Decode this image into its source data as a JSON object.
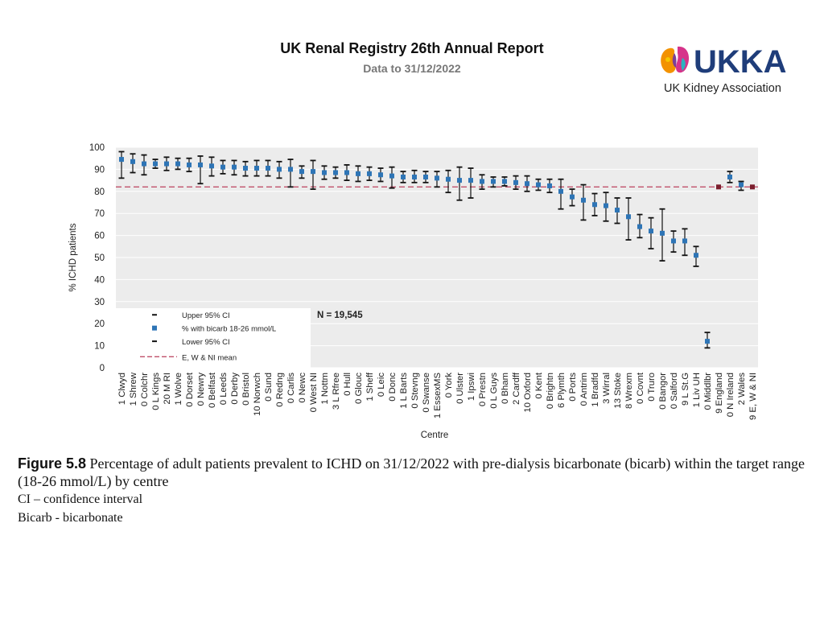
{
  "header": {
    "title": "UK Renal Registry 26th Annual Report",
    "subtitle": "Data to 31/12/2022"
  },
  "logo": {
    "wordmark": "UKKA",
    "tagline": "UK Kidney Association",
    "colors": {
      "blue": "#1f3d7a",
      "teal": "#2bb3c0",
      "orange": "#f39200",
      "magenta": "#d6338a",
      "purple": "#7b3f98",
      "yellow": "#f7c600"
    }
  },
  "caption": {
    "figure_label": "Figure 5.8",
    "text": " Percentage of adult patients prevalent to ICHD on 31/12/2022 with pre-dialysis bicarbonate (bicarb) within the target range (18-26 mmol/L) by centre",
    "note1": "CI – confidence interval",
    "note2": "Bicarb - bicarbonate"
  },
  "chart_data": {
    "type": "scatter",
    "title": "",
    "xlabel": "Centre",
    "ylabel": "% ICHD patients",
    "ylim": [
      0,
      100
    ],
    "yticks": [
      0,
      10,
      20,
      30,
      40,
      50,
      60,
      70,
      80,
      90,
      100
    ],
    "annotation": "N = 19,545",
    "mean_line": 82,
    "legend": [
      {
        "key": "upper",
        "label": "Upper 95% CI"
      },
      {
        "key": "point",
        "label": "% with bicarb 18-26 mmol/L"
      },
      {
        "key": "lower",
        "label": "Lower 95% CI"
      },
      {
        "key": "mean",
        "label": "E, W & NI mean"
      }
    ],
    "legend_position": "bottom-left",
    "colors": {
      "point": "#2e75b6",
      "aggregate": "#7b1f2e",
      "mean": "#c0506a",
      "ci": "#111111",
      "grid": "#ffffff",
      "plot_bg": "#ececec"
    },
    "categories": [
      "1 Clwyd",
      "1 Shrew",
      "0 Colchr",
      "0 L Kings",
      "20 M RI",
      "1 Wolve",
      "0 Dorset",
      "0 Newry",
      "0 Belfast",
      "0 Leeds",
      "0 Derby",
      "0 Bristol",
      "10 Norwch",
      "0 Sund",
      "0 Redng",
      "0 Carlis",
      "0 Newc",
      "0 West NI",
      "1 Nottm",
      "3 L Rfree",
      "0 Hull",
      "0 Glouc",
      "1 Sheff",
      "0 Leic",
      "0 Donc",
      "1 L Barts",
      "0 Stevng",
      "0 Swanse",
      "1 EssexMS",
      "0 York",
      "0 Ulster",
      "1 Ipswi",
      "0 Prestn",
      "0 L Guys",
      "0 Bham",
      "2 Cardff",
      "10 Oxford",
      "0 Kent",
      "0 Brightn",
      "6 Plymth",
      "0 Ports",
      "0 Antrim",
      "1 Bradfd",
      "3 Wirral",
      "13 Stoke",
      "8 Wrexm",
      "0 Covnt",
      "0 Truro",
      "0 Bangor",
      "0 Salford",
      "9 L St.G",
      "1 Liv UH",
      "0 Middlbr",
      "9 England",
      "0 N Ireland",
      "2 Wales",
      "9 E, W & NI"
    ],
    "values": [
      94.5,
      93.5,
      92.5,
      92.5,
      92.5,
      92.5,
      92,
      92,
      91.5,
      91,
      91,
      90.5,
      90.5,
      90.5,
      90,
      90,
      89,
      89,
      88.5,
      88.5,
      88.5,
      88,
      88,
      87.5,
      87,
      86.5,
      86.5,
      86.5,
      86,
      85.5,
      85,
      85,
      84.5,
      84.5,
      84.5,
      84,
      83.5,
      83,
      82.5,
      80,
      77.5,
      76,
      74,
      73.5,
      71.5,
      68.5,
      64,
      62,
      61,
      57.5,
      57.5,
      51,
      12,
      82,
      86.5,
      83,
      82
    ],
    "upper": [
      98,
      97,
      96.5,
      94.5,
      95.5,
      95,
      95,
      96,
      95.5,
      94,
      94,
      93.5,
      94,
      94,
      93.5,
      94.5,
      91.5,
      94,
      91.5,
      91,
      92,
      91.5,
      91,
      90.5,
      91,
      89,
      89.5,
      89,
      89,
      89.5,
      91,
      90.5,
      87.5,
      86.5,
      86.5,
      87,
      87,
      85.5,
      85.5,
      85.5,
      81,
      83,
      79,
      79.5,
      77,
      77,
      69.5,
      68,
      72,
      62,
      63,
      55,
      16,
      82.5,
      89,
      84.5,
      82.5
    ],
    "lower": [
      86,
      88.5,
      87.5,
      90.5,
      89.5,
      90,
      89,
      83.5,
      87,
      88,
      87.5,
      87,
      87,
      87,
      86,
      82,
      86,
      81,
      85.5,
      86,
      85,
      84.5,
      85,
      84.5,
      81.5,
      84,
      84,
      84,
      82,
      79.5,
      76,
      77,
      81,
      82,
      82.5,
      81,
      80,
      80.5,
      79.5,
      72,
      73.5,
      67,
      69,
      66.5,
      65.5,
      58,
      59,
      54,
      48.5,
      52.5,
      51,
      46,
      9,
      81.5,
      84,
      80.5,
      81.5
    ],
    "aggregate_categories": [
      "9 England",
      "9 E, W & NI"
    ]
  }
}
